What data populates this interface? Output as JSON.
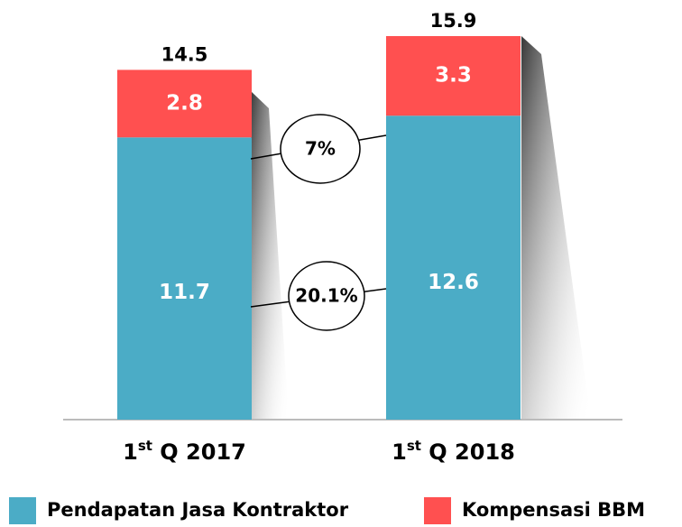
{
  "chart_data": {
    "type": "stacked_bar",
    "categories": [
      "1st Q 2017",
      "1st Q 2018"
    ],
    "series": [
      {
        "name": "Pendapatan Jasa Kontraktor",
        "color": "#4bacc6",
        "values": [
          11.7,
          12.6
        ]
      },
      {
        "name": "Kompensasi BBM",
        "color": "#ff5050",
        "values": [
          2.8,
          3.3
        ]
      }
    ],
    "totals": [
      14.5,
      15.9
    ],
    "annotations": [
      "20.1%",
      "7%"
    ]
  }
}
